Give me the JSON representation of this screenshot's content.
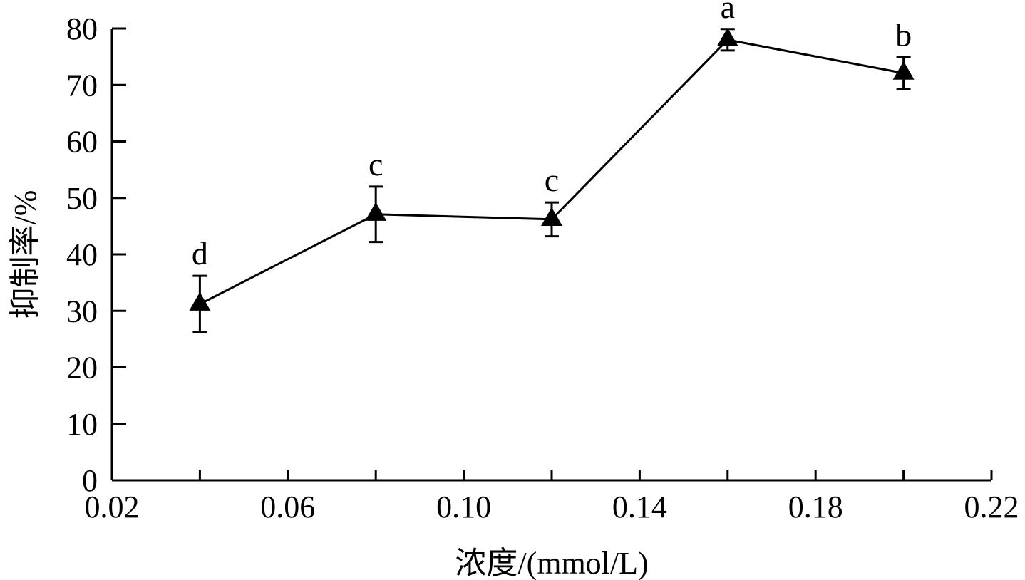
{
  "chart_data": {
    "type": "line",
    "title": "",
    "xlabel": "浓度/(mmol/L)",
    "ylabel": "抑制率/%",
    "xlim": [
      0.02,
      0.22
    ],
    "ylim": [
      0,
      80
    ],
    "x_ticks": [
      "0.02",
      "0.06",
      "0.10",
      "0.14",
      "0.18",
      "0.22"
    ],
    "y_ticks": [
      "0",
      "10",
      "20",
      "30",
      "40",
      "50",
      "60",
      "70",
      "80"
    ],
    "grid": false,
    "legend": "none",
    "marker": "triangle",
    "color": "#000000",
    "series": [
      {
        "x": [
          0.04,
          0.08,
          0.12,
          0.16,
          0.2
        ],
        "y": [
          31.2,
          47.1,
          46.2,
          78.0,
          72.1
        ],
        "error": [
          5.0,
          4.9,
          3.0,
          1.9,
          2.8
        ],
        "labels": [
          "d",
          "c",
          "c",
          "a",
          "b"
        ]
      }
    ]
  }
}
